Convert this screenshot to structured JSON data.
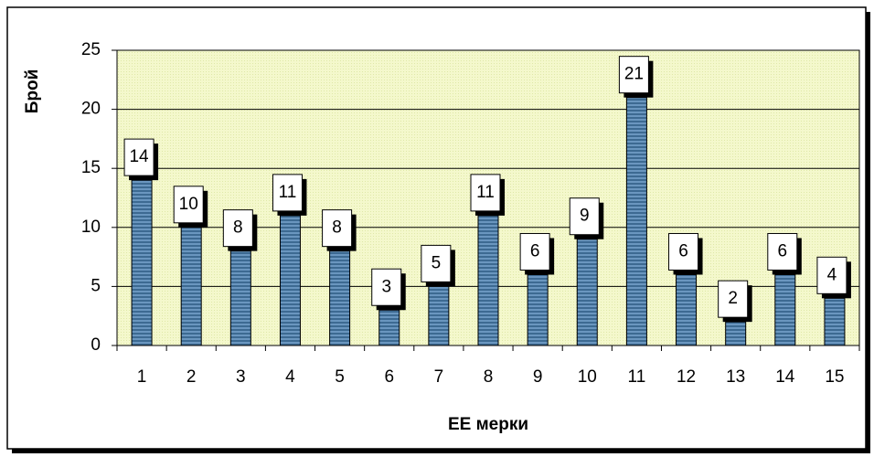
{
  "chart_data": {
    "type": "bar",
    "xlabel": "ЕЕ мерки",
    "ylabel": "Брой",
    "categories": [
      "1",
      "2",
      "3",
      "4",
      "5",
      "6",
      "7",
      "8",
      "9",
      "10",
      "11",
      "12",
      "13",
      "14",
      "15"
    ],
    "values": [
      14,
      10,
      8,
      11,
      8,
      3,
      5,
      11,
      6,
      9,
      21,
      6,
      2,
      6,
      4
    ],
    "color": "#4f7fa8",
    "ylim": [
      0,
      25
    ],
    "yticks": [
      0,
      5,
      10,
      15,
      20,
      25
    ],
    "grid": true
  }
}
